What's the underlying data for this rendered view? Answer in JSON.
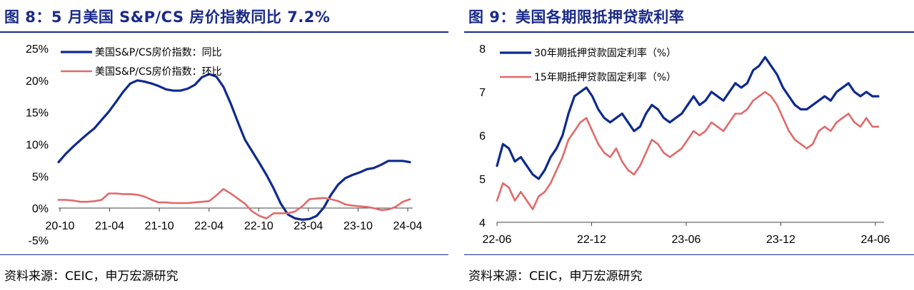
{
  "left": {
    "title": "图 8：5 月美国 S&P/CS 房价指数同比 7.2%",
    "source": "资料来源：CEIC，申万宏源研究",
    "colors": {
      "yoy": "#0e2a8e",
      "mom": "#e06a6a"
    }
  },
  "right": {
    "title": "图 9：美国各期限抵押贷款利率",
    "source": "资料来源：CEIC，申万宏源研究",
    "colors": {
      "r30": "#0e2a8e",
      "r15": "#e06a6a"
    }
  },
  "chart_data": [
    {
      "type": "line",
      "title": "5 月美国 S&P/CS 房价指数同比 7.2%",
      "xlabel": "",
      "ylabel": "",
      "ylim": [
        -5,
        25
      ],
      "y_ticks": [
        "25%",
        "20%",
        "15%",
        "10%",
        "5%",
        "0%",
        "-5%"
      ],
      "x_ticks": [
        "20-10",
        "21-04",
        "21-10",
        "22-04",
        "22-10",
        "23-04",
        "23-10",
        "24-04"
      ],
      "x_start": "2020-10",
      "legend": "top-left",
      "grid": false,
      "series": [
        {
          "name": "美国S&P/CS房价指数：同比",
          "values": [
            7.2,
            8.5,
            9.6,
            10.6,
            11.6,
            12.5,
            13.8,
            15.1,
            16.6,
            18.2,
            19.5,
            20.0,
            19.8,
            19.5,
            19.1,
            18.6,
            18.4,
            18.4,
            18.7,
            19.3,
            20.5,
            21.0,
            20.6,
            19.0,
            16.4,
            13.5,
            10.7,
            8.9,
            7.1,
            5.2,
            3.1,
            0.7,
            -1.0,
            -1.6,
            -1.8,
            -1.7,
            -1.2,
            0.1,
            2.1,
            3.7,
            4.7,
            5.2,
            5.6,
            6.1,
            6.3,
            6.8,
            7.4,
            7.4,
            7.4,
            7.2
          ]
        },
        {
          "name": "美国S&P/CS房价指数：环比",
          "values": [
            1.3,
            1.3,
            1.2,
            1.0,
            1.0,
            1.1,
            1.3,
            2.3,
            2.3,
            2.2,
            2.2,
            2.1,
            1.8,
            1.3,
            0.9,
            0.9,
            0.8,
            0.8,
            0.8,
            0.9,
            1.0,
            1.1,
            2.0,
            3.0,
            2.3,
            1.5,
            0.7,
            -0.5,
            -1.2,
            -1.6,
            -0.8,
            -0.8,
            -0.8,
            -0.5,
            0.3,
            1.4,
            1.5,
            1.6,
            1.4,
            1.1,
            0.6,
            0.4,
            0.3,
            0.2,
            0.0,
            -0.3,
            -0.2,
            0.2,
            1.0,
            1.4
          ]
        }
      ]
    },
    {
      "type": "line",
      "title": "美国各期限抵押贷款利率",
      "xlabel": "",
      "ylabel": "",
      "ylim": [
        4,
        8
      ],
      "y_ticks": [
        "8",
        "7",
        "6",
        "5",
        "4"
      ],
      "x_ticks": [
        "22-06",
        "22-12",
        "23-06",
        "23-12",
        "24-06"
      ],
      "x_start": "2022-06",
      "legend": "top-left",
      "grid": false,
      "series": [
        {
          "name": "30年期抵押贷款固定利率（%）",
          "values": [
            5.3,
            5.8,
            5.7,
            5.4,
            5.5,
            5.3,
            5.1,
            5.0,
            5.2,
            5.5,
            5.7,
            6.0,
            6.5,
            6.9,
            7.0,
            7.1,
            6.9,
            6.6,
            6.4,
            6.3,
            6.4,
            6.5,
            6.3,
            6.1,
            6.2,
            6.5,
            6.7,
            6.6,
            6.4,
            6.3,
            6.4,
            6.5,
            6.7,
            6.9,
            6.7,
            6.8,
            7.0,
            6.9,
            6.8,
            7.0,
            7.2,
            7.1,
            7.2,
            7.5,
            7.6,
            7.8,
            7.6,
            7.4,
            7.1,
            6.9,
            6.7,
            6.6,
            6.6,
            6.7,
            6.8,
            6.9,
            6.8,
            7.0,
            7.1,
            7.2,
            7.0,
            6.9,
            7.0,
            6.9,
            6.9
          ]
        },
        {
          "name": "15年期抵押贷款固定利率（%）",
          "values": [
            4.5,
            4.9,
            4.8,
            4.5,
            4.7,
            4.5,
            4.3,
            4.6,
            4.7,
            4.9,
            5.2,
            5.5,
            5.9,
            6.1,
            6.3,
            6.4,
            6.1,
            5.8,
            5.6,
            5.5,
            5.7,
            5.4,
            5.2,
            5.1,
            5.3,
            5.6,
            5.9,
            5.8,
            5.6,
            5.5,
            5.6,
            5.7,
            5.9,
            6.1,
            6.0,
            6.1,
            6.3,
            6.2,
            6.1,
            6.3,
            6.5,
            6.5,
            6.6,
            6.8,
            6.9,
            7.0,
            6.9,
            6.7,
            6.4,
            6.1,
            5.9,
            5.8,
            5.7,
            5.8,
            6.1,
            6.2,
            6.1,
            6.3,
            6.4,
            6.5,
            6.3,
            6.2,
            6.4,
            6.2,
            6.2
          ]
        }
      ]
    }
  ]
}
